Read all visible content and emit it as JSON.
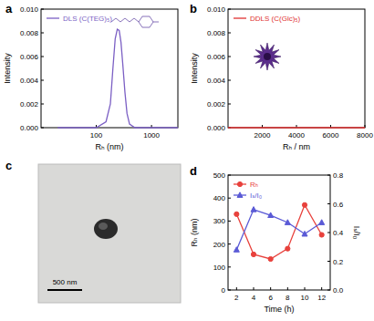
{
  "chart_data": [
    {
      "type": "line",
      "title": "a",
      "x_label": "Rₕ (nm)",
      "y_label": "Intensity",
      "log": "x",
      "legend": "upper left",
      "xlim": [
        10,
        3000
      ],
      "xticks": [
        100,
        1000
      ],
      "ylim": [
        0,
        0.01
      ],
      "yticks": [
        {
          "value": 0,
          "label": "0.000"
        },
        0.002,
        0.004,
        0.006,
        0.008,
        {
          "value": 0.01,
          "label": "0.010"
        }
      ],
      "x": [
        20,
        100,
        150,
        180,
        200,
        220,
        240,
        260,
        280,
        300,
        330,
        360,
        400,
        500,
        1000,
        3000
      ],
      "series": [
        {
          "name": "DLS (C(TEG)₅)",
          "color": "#7b5fc4",
          "values": [
            0,
            0,
            0.0005,
            0.002,
            0.005,
            0.0075,
            0.0083,
            0.0082,
            0.0072,
            0.0055,
            0.003,
            0.0012,
            0.0003,
            0,
            0,
            0
          ]
        }
      ]
    },
    {
      "type": "line",
      "title": "b",
      "x_label": "Rₕ / nm",
      "y_label": "Intensity",
      "legend": "upper left",
      "xlim": [
        0,
        8000
      ],
      "xticks": [
        2000,
        4000,
        6000,
        8000
      ],
      "ylim": [
        0,
        0.01
      ],
      "yticks": [
        {
          "value": 0,
          "label": "0.000"
        },
        0.002,
        0.004,
        0.006,
        0.008,
        {
          "value": 0.01,
          "label": "0.010"
        }
      ],
      "x": [
        0,
        8000
      ],
      "series": [
        {
          "name": "DDLS (C(Glc)₅)",
          "color": "#e03030",
          "values": [
            0,
            0
          ]
        }
      ]
    },
    {
      "type": "line",
      "title": "d",
      "x_label": "Time (h)",
      "y_label": "Rₕ (nm)",
      "y2_label": "Iₛ/I₀",
      "legend": "upper left",
      "xlim": [
        1,
        13
      ],
      "xticks": [
        2,
        4,
        6,
        8,
        10,
        12
      ],
      "ylim": [
        0,
        500
      ],
      "yticks": [
        0,
        100,
        200,
        300,
        400,
        500
      ],
      "y2lim": [
        0,
        0.8
      ],
      "y2ticks": [
        {
          "value": 0,
          "label": "0.0"
        },
        0.2,
        0.4,
        0.6,
        0.8
      ],
      "x": [
        2,
        4,
        6,
        8,
        10,
        12
      ],
      "series": [
        {
          "name": "Rₕ",
          "color": "#e8413c",
          "marker": "circle",
          "values": [
            330,
            155,
            135,
            180,
            370,
            240
          ]
        },
        {
          "name": "Iₛ/I₀",
          "color": "#5a5ad6",
          "marker": "triangle",
          "axis": "y2",
          "values": [
            0.28,
            0.56,
            0.52,
            0.47,
            0.39,
            0.47
          ]
        }
      ]
    }
  ],
  "image": {
    "title": "c",
    "scale_bar": "500 nm"
  }
}
